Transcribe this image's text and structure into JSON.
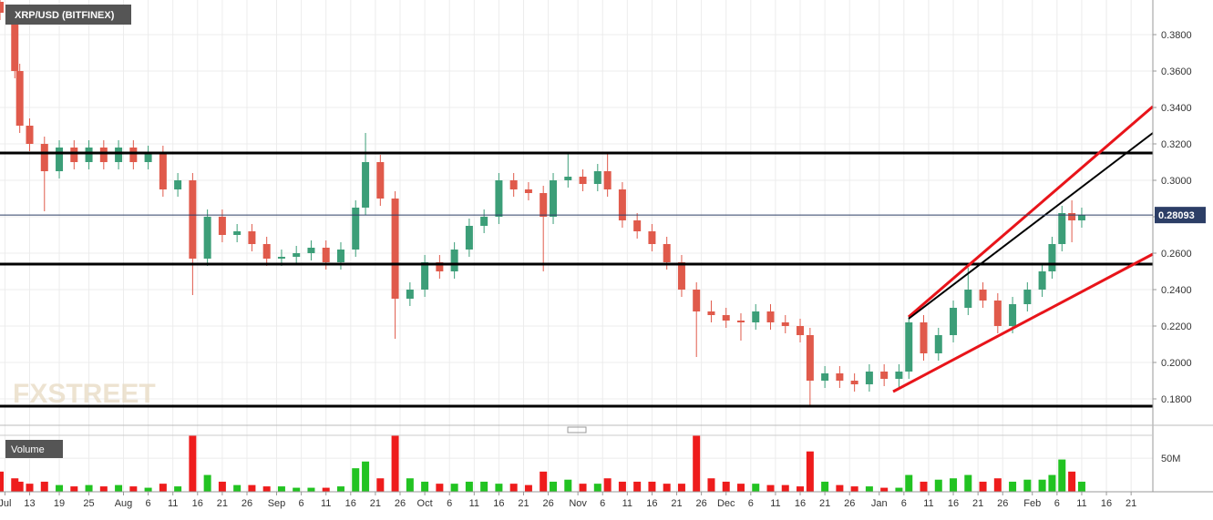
{
  "chart_data": {
    "type": "candlestick",
    "title": "XRP/USD (BITFINEX)",
    "watermark": "FXSTREET",
    "last_price": {
      "value": 0.28093,
      "label": "0.28093"
    },
    "xlim": [
      0,
      233.4
    ],
    "xticks": [
      {
        "value": 1,
        "label": "Jul"
      },
      {
        "value": 6,
        "label": "13"
      },
      {
        "value": 12,
        "label": "19"
      },
      {
        "value": 18,
        "label": "25"
      },
      {
        "value": 25,
        "label": "Aug"
      },
      {
        "value": 30,
        "label": "6"
      },
      {
        "value": 35,
        "label": "11"
      },
      {
        "value": 40,
        "label": "16"
      },
      {
        "value": 45,
        "label": "21"
      },
      {
        "value": 50,
        "label": "26"
      },
      {
        "value": 56,
        "label": "Sep"
      },
      {
        "value": 61,
        "label": "6"
      },
      {
        "value": 66,
        "label": "11"
      },
      {
        "value": 71,
        "label": "16"
      },
      {
        "value": 76,
        "label": "21"
      },
      {
        "value": 81,
        "label": "26"
      },
      {
        "value": 86,
        "label": "Oct"
      },
      {
        "value": 91,
        "label": "6"
      },
      {
        "value": 96,
        "label": "11"
      },
      {
        "value": 101,
        "label": "16"
      },
      {
        "value": 106,
        "label": "21"
      },
      {
        "value": 111,
        "label": "26"
      },
      {
        "value": 117,
        "label": "Nov"
      },
      {
        "value": 122,
        "label": "6"
      },
      {
        "value": 127,
        "label": "11"
      },
      {
        "value": 132,
        "label": "16"
      },
      {
        "value": 137,
        "label": "21"
      },
      {
        "value": 142,
        "label": "26"
      },
      {
        "value": 147,
        "label": "Dec"
      },
      {
        "value": 152,
        "label": "6"
      },
      {
        "value": 157,
        "label": "11"
      },
      {
        "value": 162,
        "label": "16"
      },
      {
        "value": 167,
        "label": "21"
      },
      {
        "value": 172,
        "label": "26"
      },
      {
        "value": 178,
        "label": "Jan"
      },
      {
        "value": 183,
        "label": "6"
      },
      {
        "value": 188,
        "label": "11"
      },
      {
        "value": 193,
        "label": "16"
      },
      {
        "value": 198,
        "label": "21"
      },
      {
        "value": 203,
        "label": "26"
      },
      {
        "value": 209,
        "label": "Feb"
      },
      {
        "value": 214,
        "label": "6"
      },
      {
        "value": 219,
        "label": "11"
      },
      {
        "value": 224,
        "label": "16"
      },
      {
        "value": 229,
        "label": "21"
      }
    ],
    "ylim": [
      0.1655,
      0.399
    ],
    "yticks": [
      {
        "value": 0.18,
        "label": "0.1800"
      },
      {
        "value": 0.2,
        "label": "0.2000"
      },
      {
        "value": 0.22,
        "label": "0.2200"
      },
      {
        "value": 0.24,
        "label": "0.2400"
      },
      {
        "value": 0.26,
        "label": "0.2600"
      },
      {
        "value": 0.28,
        "label": "0.2800"
      },
      {
        "value": 0.3,
        "label": "0.3000"
      },
      {
        "value": 0.32,
        "label": "0.3200"
      },
      {
        "value": 0.34,
        "label": "0.3400"
      },
      {
        "value": 0.36,
        "label": "0.3600"
      },
      {
        "value": 0.38,
        "label": "0.3800"
      }
    ],
    "grid": true,
    "up_color": "#3c9e78",
    "down_color": "#e05a4b",
    "x": [
      0,
      3,
      4,
      6,
      9,
      12,
      15,
      18,
      21,
      24,
      27,
      30,
      33,
      36,
      39,
      42,
      45,
      48,
      51,
      54,
      57,
      60,
      63,
      66,
      69,
      72,
      74,
      77,
      80,
      83,
      86,
      89,
      92,
      95,
      98,
      101,
      104,
      107,
      110,
      112,
      115,
      118,
      121,
      123,
      126,
      129,
      132,
      135,
      138,
      141,
      144,
      147,
      150,
      153,
      156,
      159,
      162,
      164,
      167,
      170,
      173,
      176,
      179,
      182,
      184,
      187,
      190,
      193,
      196,
      199,
      202,
      205,
      208,
      211,
      213,
      215,
      217,
      219
    ],
    "open": [
      0.398,
      0.392,
      0.36,
      0.33,
      0.32,
      0.305,
      0.318,
      0.31,
      0.318,
      0.31,
      0.318,
      0.31,
      0.315,
      0.295,
      0.3,
      0.257,
      0.28,
      0.27,
      0.272,
      0.265,
      0.257,
      0.258,
      0.26,
      0.263,
      0.255,
      0.262,
      0.285,
      0.31,
      0.29,
      0.235,
      0.24,
      0.255,
      0.25,
      0.262,
      0.275,
      0.28,
      0.3,
      0.295,
      0.293,
      0.28,
      0.3,
      0.302,
      0.298,
      0.305,
      0.295,
      0.278,
      0.272,
      0.265,
      0.255,
      0.24,
      0.228,
      0.226,
      0.223,
      0.222,
      0.228,
      0.222,
      0.22,
      0.215,
      0.19,
      0.194,
      0.19,
      0.188,
      0.195,
      0.191,
      0.195,
      0.222,
      0.205,
      0.215,
      0.23,
      0.24,
      0.234,
      0.22,
      0.232,
      0.24,
      0.25,
      0.265,
      0.282,
      0.278
    ],
    "high": [
      0.402,
      0.396,
      0.364,
      0.334,
      0.324,
      0.322,
      0.322,
      0.322,
      0.322,
      0.322,
      0.322,
      0.319,
      0.319,
      0.304,
      0.304,
      0.284,
      0.284,
      0.276,
      0.276,
      0.269,
      0.262,
      0.264,
      0.267,
      0.267,
      0.266,
      0.289,
      0.326,
      0.314,
      0.294,
      0.244,
      0.259,
      0.259,
      0.266,
      0.279,
      0.284,
      0.304,
      0.304,
      0.299,
      0.297,
      0.304,
      0.315,
      0.306,
      0.309,
      0.315,
      0.299,
      0.282,
      0.276,
      0.269,
      0.259,
      0.244,
      0.234,
      0.23,
      0.227,
      0.232,
      0.232,
      0.226,
      0.224,
      0.219,
      0.198,
      0.198,
      0.194,
      0.199,
      0.199,
      0.199,
      0.226,
      0.226,
      0.219,
      0.234,
      0.252,
      0.244,
      0.238,
      0.236,
      0.244,
      0.254,
      0.269,
      0.286,
      0.289,
      0.285
    ],
    "low": [
      0.388,
      0.356,
      0.326,
      0.316,
      0.283,
      0.301,
      0.306,
      0.306,
      0.306,
      0.306,
      0.306,
      0.306,
      0.291,
      0.291,
      0.237,
      0.253,
      0.266,
      0.266,
      0.261,
      0.253,
      0.253,
      0.254,
      0.256,
      0.251,
      0.251,
      0.258,
      0.281,
      0.286,
      0.213,
      0.231,
      0.236,
      0.246,
      0.246,
      0.258,
      0.271,
      0.276,
      0.291,
      0.289,
      0.25,
      0.276,
      0.296,
      0.294,
      0.294,
      0.291,
      0.274,
      0.268,
      0.261,
      0.251,
      0.236,
      0.203,
      0.222,
      0.219,
      0.212,
      0.218,
      0.218,
      0.216,
      0.211,
      0.176,
      0.186,
      0.186,
      0.184,
      0.184,
      0.187,
      0.185,
      0.191,
      0.201,
      0.201,
      0.211,
      0.226,
      0.23,
      0.216,
      0.216,
      0.228,
      0.236,
      0.246,
      0.261,
      0.266,
      0.274
    ],
    "close": [
      0.392,
      0.36,
      0.33,
      0.32,
      0.305,
      0.318,
      0.31,
      0.318,
      0.31,
      0.318,
      0.31,
      0.315,
      0.295,
      0.3,
      0.257,
      0.28,
      0.27,
      0.272,
      0.265,
      0.257,
      0.258,
      0.26,
      0.263,
      0.255,
      0.262,
      0.285,
      0.31,
      0.29,
      0.235,
      0.24,
      0.255,
      0.25,
      0.262,
      0.275,
      0.28,
      0.3,
      0.295,
      0.293,
      0.28,
      0.3,
      0.302,
      0.298,
      0.305,
      0.295,
      0.278,
      0.272,
      0.265,
      0.255,
      0.24,
      0.228,
      0.226,
      0.223,
      0.222,
      0.228,
      0.222,
      0.22,
      0.215,
      0.19,
      0.194,
      0.19,
      0.188,
      0.195,
      0.191,
      0.195,
      0.222,
      0.205,
      0.215,
      0.23,
      0.24,
      0.234,
      0.22,
      0.232,
      0.24,
      0.25,
      0.265,
      0.282,
      0.278,
      0.281
    ],
    "volume": {
      "title": "Volume",
      "ylim": [
        0,
        84
      ],
      "yticks": [
        {
          "value": 50,
          "label": "50M"
        }
      ],
      "up_color": "#22c322",
      "down_color": "#ee1c1c",
      "values": [
        30,
        20,
        15,
        12,
        15,
        10,
        8,
        10,
        8,
        10,
        8,
        6,
        12,
        8,
        84,
        25,
        15,
        10,
        10,
        8,
        8,
        6,
        6,
        6,
        8,
        35,
        45,
        20,
        84,
        20,
        15,
        12,
        12,
        15,
        15,
        12,
        12,
        10,
        30,
        15,
        18,
        12,
        12,
        20,
        15,
        15,
        15,
        12,
        12,
        84,
        20,
        15,
        12,
        12,
        10,
        10,
        8,
        60,
        15,
        10,
        8,
        8,
        6,
        6,
        25,
        15,
        18,
        20,
        25,
        15,
        20,
        15,
        18,
        18,
        25,
        48,
        30,
        15
      ]
    }
  }
}
